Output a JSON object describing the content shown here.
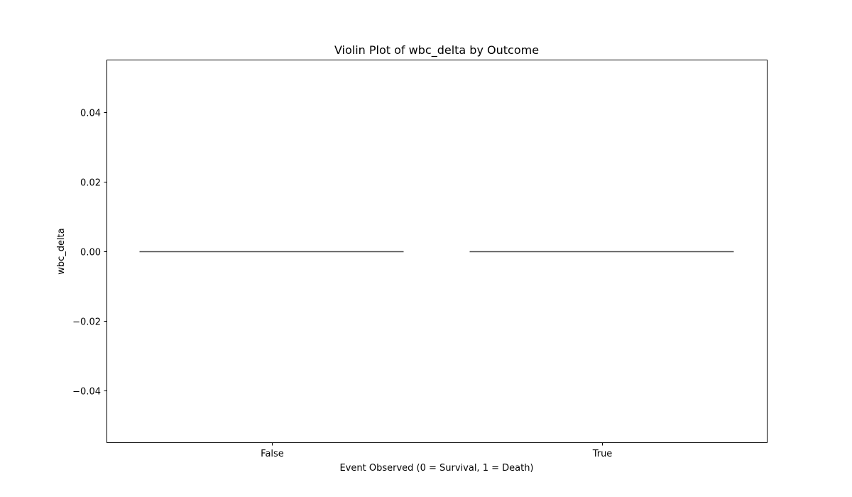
{
  "chart_data": {
    "type": "violin",
    "title": "Violin Plot of wbc_delta by Outcome",
    "xlabel": "Event Observed (0 = Survival, 1 = Death)",
    "ylabel": "wbc_delta",
    "categories": [
      "False",
      "True"
    ],
    "series": [
      {
        "name": "False",
        "values": [
          0.0
        ]
      },
      {
        "name": "True",
        "values": [
          0.0
        ]
      }
    ],
    "ylim": [
      -0.055,
      0.055
    ],
    "yticks": [
      -0.04,
      -0.02,
      0.0,
      0.02,
      0.04
    ],
    "ytick_labels": [
      "−0.04",
      "−0.02",
      "0.00",
      "0.02",
      "0.04"
    ],
    "grid": false,
    "violin_color": "#4d4d4d"
  }
}
